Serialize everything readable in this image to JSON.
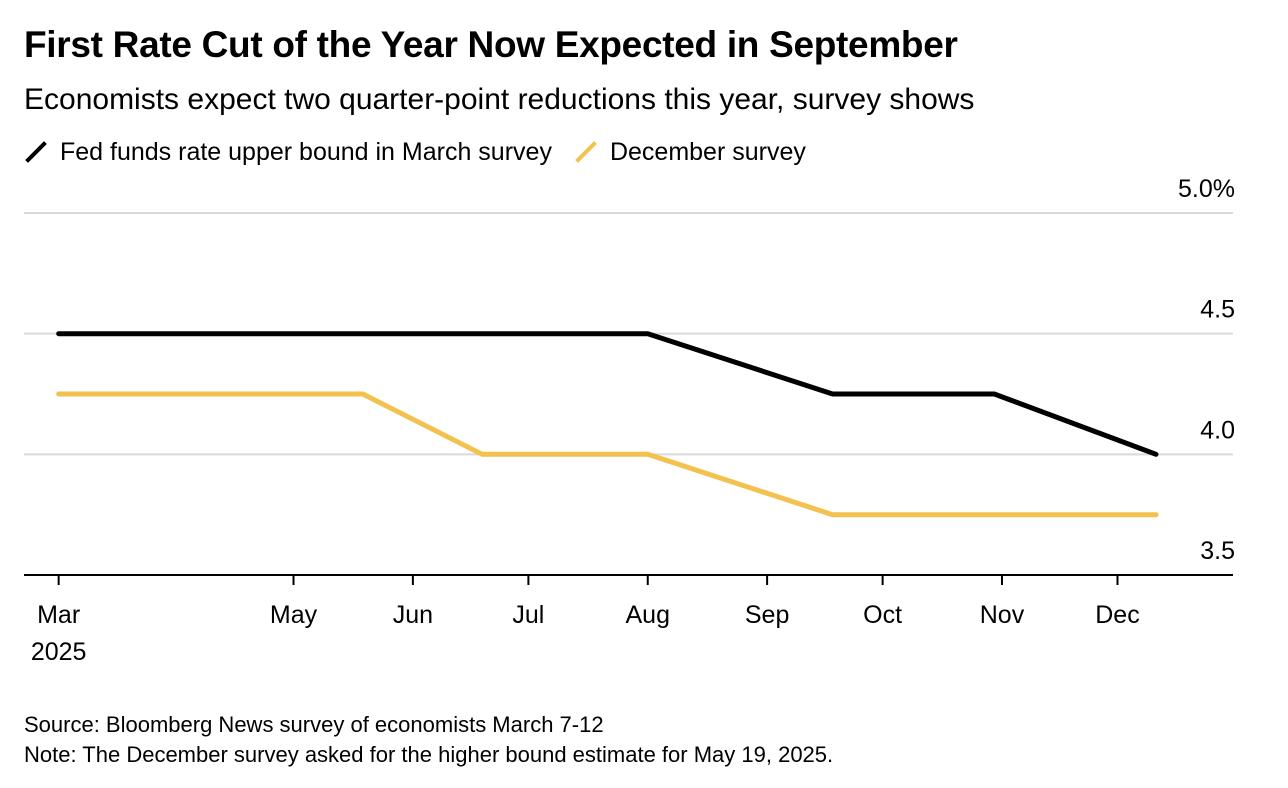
{
  "title": "First Rate Cut of the Year Now Expected in September",
  "subtitle": "Economists expect two quarter-point reductions this year, survey shows",
  "legend": [
    {
      "label": "Fed funds rate upper bound in March survey",
      "color": "#000000"
    },
    {
      "label": "December survey",
      "color": "#F2C14E"
    }
  ],
  "footer": {
    "source": "Source: Bloomberg News survey of economists March 7-12",
    "note": "Note: The December survey asked for the higher bound estimate for May 19, 2025."
  },
  "chart_data": {
    "type": "line",
    "title": "First Rate Cut of the Year Now Expected in September",
    "subtitle": "Economists expect two quarter-point reductions this year, survey shows",
    "x_tick_labels": [
      "Mar",
      "May",
      "Jun",
      "Jul",
      "Aug",
      "Sep",
      "Oct",
      "Nov",
      "Dec"
    ],
    "x_tick_dates": [
      "2025-03-01",
      "2025-05-01",
      "2025-06-01",
      "2025-07-01",
      "2025-08-01",
      "2025-09-01",
      "2025-10-01",
      "2025-11-01",
      "2025-12-01"
    ],
    "x_year_label": "2025",
    "x_range": [
      "2025-02-20",
      "2025-12-31"
    ],
    "y_ticks": [
      "5.0%",
      "4.5",
      "4.0",
      "3.5"
    ],
    "y_tick_values": [
      5.0,
      4.5,
      4.0,
      3.5
    ],
    "ylim": [
      3.5,
      5.0
    ],
    "grid": true,
    "y_axis_position": "right",
    "legend_position": "top-left",
    "series": [
      {
        "name": "Fed funds rate upper bound in March survey",
        "color": "#000000",
        "points": [
          {
            "x": "2025-03-01",
            "y": 4.5
          },
          {
            "x": "2025-08-01",
            "y": 4.5
          },
          {
            "x": "2025-09-18",
            "y": 4.25
          },
          {
            "x": "2025-10-30",
            "y": 4.25
          },
          {
            "x": "2025-12-11",
            "y": 4.0
          }
        ]
      },
      {
        "name": "December survey",
        "color": "#F2C14E",
        "points": [
          {
            "x": "2025-03-01",
            "y": 4.25
          },
          {
            "x": "2025-05-19",
            "y": 4.25
          },
          {
            "x": "2025-06-19",
            "y": 4.0
          },
          {
            "x": "2025-08-01",
            "y": 4.0
          },
          {
            "x": "2025-09-18",
            "y": 3.75
          },
          {
            "x": "2025-12-11",
            "y": 3.75
          }
        ]
      }
    ],
    "source": "Source: Bloomberg News survey of economists March 7-12",
    "note": "Note: The December survey asked for the higher bound estimate for May 19, 2025."
  }
}
